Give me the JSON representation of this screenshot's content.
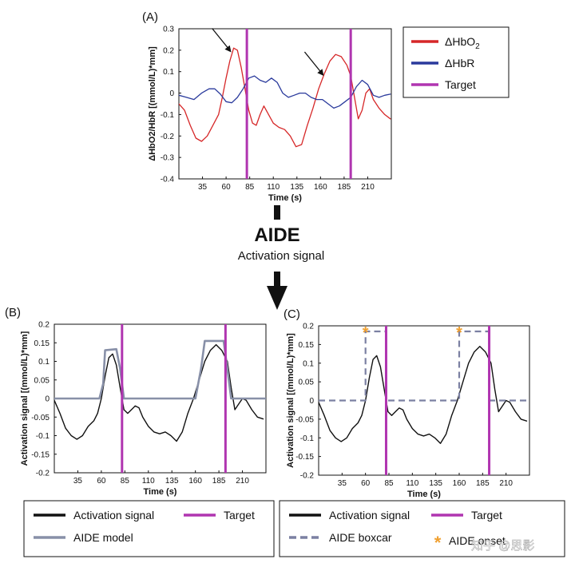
{
  "flow": {
    "title": "AIDE",
    "subtitle": "Activation signal"
  },
  "watermark": "知乎 @思影",
  "colors": {
    "hbo2": "#d62728",
    "hbr": "#2a3a9c",
    "target": "#b035b0",
    "activation": "#111111",
    "aide_model": "#8890a8",
    "aide_boxcar": "#7b80a2",
    "star": "#f0a030"
  },
  "chart_data": [
    {
      "panel": "(A)",
      "type": "line",
      "xlabel": "Time (s)",
      "ylabel": "ΔHbO2/HbR [(mmol/L)*mm]",
      "xlim": [
        10,
        235
      ],
      "ylim": [
        -0.4,
        0.3
      ],
      "xticks": [
        35,
        60,
        85,
        110,
        135,
        160,
        185,
        210
      ],
      "yticks": [
        -0.4,
        -0.3,
        -0.2,
        -0.1,
        0,
        0.1,
        0.2,
        0.3
      ],
      "targets": [
        82,
        192
      ],
      "arrows": [
        {
          "x": 68,
          "y": 0.22
        },
        {
          "x": 166,
          "y": 0.11
        }
      ],
      "legend": {
        "position": "right",
        "entries": [
          {
            "label": "ΔHbO",
            "sub": "2",
            "style": "hbo2"
          },
          {
            "label": "ΔHbR",
            "sub": "",
            "style": "hbr"
          },
          {
            "label": "Target",
            "sub": "",
            "style": "target"
          }
        ]
      },
      "series": [
        {
          "name": "ΔHbO2",
          "style": "hbo2",
          "points": [
            [
              10,
              -0.05
            ],
            [
              16,
              -0.08
            ],
            [
              22,
              -0.15
            ],
            [
              28,
              -0.21
            ],
            [
              34,
              -0.225
            ],
            [
              40,
              -0.2
            ],
            [
              46,
              -0.15
            ],
            [
              52,
              -0.1
            ],
            [
              56,
              -0.02
            ],
            [
              60,
              0.07
            ],
            [
              64,
              0.15
            ],
            [
              68,
              0.21
            ],
            [
              72,
              0.2
            ],
            [
              76,
              0.12
            ],
            [
              80,
              0.02
            ],
            [
              84,
              -0.08
            ],
            [
              88,
              -0.14
            ],
            [
              92,
              -0.15
            ],
            [
              96,
              -0.1
            ],
            [
              100,
              -0.06
            ],
            [
              105,
              -0.1
            ],
            [
              110,
              -0.14
            ],
            [
              116,
              -0.16
            ],
            [
              122,
              -0.17
            ],
            [
              128,
              -0.2
            ],
            [
              134,
              -0.25
            ],
            [
              140,
              -0.24
            ],
            [
              146,
              -0.15
            ],
            [
              152,
              -0.07
            ],
            [
              158,
              0.02
            ],
            [
              164,
              0.09
            ],
            [
              170,
              0.15
            ],
            [
              176,
              0.18
            ],
            [
              182,
              0.17
            ],
            [
              188,
              0.13
            ],
            [
              192,
              0.08
            ],
            [
              196,
              -0.02
            ],
            [
              200,
              -0.12
            ],
            [
              204,
              -0.08
            ],
            [
              208,
              0.0
            ],
            [
              212,
              0.02
            ],
            [
              216,
              -0.03
            ],
            [
              222,
              -0.07
            ],
            [
              228,
              -0.1
            ],
            [
              234,
              -0.12
            ]
          ]
        },
        {
          "name": "ΔHbR",
          "style": "hbr",
          "points": [
            [
              10,
              -0.01
            ],
            [
              18,
              -0.02
            ],
            [
              26,
              -0.03
            ],
            [
              34,
              0.0
            ],
            [
              42,
              0.02
            ],
            [
              48,
              0.02
            ],
            [
              54,
              -0.005
            ],
            [
              60,
              -0.04
            ],
            [
              66,
              -0.045
            ],
            [
              72,
              -0.02
            ],
            [
              78,
              0.02
            ],
            [
              84,
              0.07
            ],
            [
              90,
              0.08
            ],
            [
              96,
              0.06
            ],
            [
              102,
              0.05
            ],
            [
              108,
              0.07
            ],
            [
              114,
              0.05
            ],
            [
              120,
              0.0
            ],
            [
              126,
              -0.02
            ],
            [
              132,
              -0.01
            ],
            [
              138,
              0.0
            ],
            [
              144,
              0.0
            ],
            [
              150,
              -0.02
            ],
            [
              156,
              -0.03
            ],
            [
              162,
              -0.03
            ],
            [
              168,
              -0.05
            ],
            [
              174,
              -0.07
            ],
            [
              180,
              -0.06
            ],
            [
              186,
              -0.04
            ],
            [
              192,
              -0.02
            ],
            [
              198,
              0.03
            ],
            [
              204,
              0.06
            ],
            [
              210,
              0.04
            ],
            [
              216,
              -0.01
            ],
            [
              222,
              -0.02
            ],
            [
              228,
              -0.01
            ],
            [
              234,
              -0.005
            ]
          ]
        }
      ]
    },
    {
      "panel": "(B)",
      "type": "line",
      "xlabel": "Time (s)",
      "ylabel": "Activation signal [(mmol/L)*mm]",
      "xlim": [
        10,
        235
      ],
      "ylim": [
        -0.2,
        0.2
      ],
      "xticks": [
        35,
        60,
        85,
        110,
        135,
        160,
        185,
        210
      ],
      "yticks": [
        -0.2,
        -0.15,
        -0.1,
        -0.05,
        0,
        0.05,
        0.1,
        0.15,
        0.2
      ],
      "targets": [
        82,
        192
      ],
      "legend": {
        "position": "bottom",
        "entries": [
          {
            "label": "Activation signal",
            "style": "activation"
          },
          {
            "label": "Target",
            "style": "target"
          },
          {
            "label": "AIDE model",
            "style": "aide_model"
          }
        ]
      },
      "series": [
        {
          "name": "Activation signal",
          "style": "activation",
          "points": [
            [
              10,
              -0.005
            ],
            [
              16,
              -0.04
            ],
            [
              22,
              -0.08
            ],
            [
              28,
              -0.1
            ],
            [
              34,
              -0.11
            ],
            [
              40,
              -0.1
            ],
            [
              46,
              -0.075
            ],
            [
              52,
              -0.06
            ],
            [
              56,
              -0.04
            ],
            [
              60,
              0.0
            ],
            [
              64,
              0.06
            ],
            [
              68,
              0.11
            ],
            [
              72,
              0.12
            ],
            [
              76,
              0.09
            ],
            [
              80,
              0.03
            ],
            [
              84,
              -0.03
            ],
            [
              88,
              -0.04
            ],
            [
              92,
              -0.03
            ],
            [
              96,
              -0.02
            ],
            [
              100,
              -0.025
            ],
            [
              104,
              -0.05
            ],
            [
              110,
              -0.075
            ],
            [
              116,
              -0.09
            ],
            [
              122,
              -0.095
            ],
            [
              128,
              -0.09
            ],
            [
              134,
              -0.1
            ],
            [
              140,
              -0.115
            ],
            [
              146,
              -0.09
            ],
            [
              152,
              -0.04
            ],
            [
              158,
              0.0
            ],
            [
              164,
              0.05
            ],
            [
              170,
              0.1
            ],
            [
              176,
              0.13
            ],
            [
              182,
              0.145
            ],
            [
              188,
              0.13
            ],
            [
              194,
              0.1
            ],
            [
              198,
              0.03
            ],
            [
              202,
              -0.03
            ],
            [
              206,
              -0.015
            ],
            [
              210,
              0.0
            ],
            [
              214,
              -0.005
            ],
            [
              220,
              -0.03
            ],
            [
              226,
              -0.05
            ],
            [
              232,
              -0.055
            ]
          ]
        },
        {
          "name": "AIDE model",
          "style": "aide_model",
          "points": [
            [
              10,
              0
            ],
            [
              58,
              0
            ],
            [
              62,
              0.04
            ],
            [
              64,
              0.13
            ],
            [
              76,
              0.133
            ],
            [
              80,
              0.08
            ],
            [
              84,
              0.0
            ],
            [
              160,
              0
            ],
            [
              166,
              0.08
            ],
            [
              170,
              0.155
            ],
            [
              190,
              0.155
            ],
            [
              194,
              0.08
            ],
            [
              198,
              0.0
            ],
            [
              235,
              0
            ]
          ]
        }
      ]
    },
    {
      "panel": "(C)",
      "type": "line",
      "xlabel": "Time (s)",
      "ylabel": "Activation signal [(mmol/L)*mm]",
      "xlim": [
        10,
        235
      ],
      "ylim": [
        -0.2,
        0.2
      ],
      "xticks": [
        35,
        60,
        85,
        110,
        135,
        160,
        185,
        210
      ],
      "yticks": [
        -0.2,
        -0.15,
        -0.1,
        -0.05,
        0,
        0.05,
        0.1,
        0.15,
        0.2
      ],
      "targets": [
        82,
        192
      ],
      "stars": [
        {
          "x": 60,
          "y": 0.185
        },
        {
          "x": 160,
          "y": 0.185
        }
      ],
      "legend": {
        "position": "bottom",
        "entries": [
          {
            "label": "Activation signal",
            "style": "activation"
          },
          {
            "label": "Target",
            "style": "target"
          },
          {
            "label": "AIDE boxcar",
            "style": "aide_boxcar"
          },
          {
            "label": "AIDE onset",
            "style": "star"
          }
        ]
      },
      "series": [
        {
          "name": "Activation signal",
          "style": "activation",
          "points": [
            [
              10,
              -0.005
            ],
            [
              16,
              -0.04
            ],
            [
              22,
              -0.08
            ],
            [
              28,
              -0.1
            ],
            [
              34,
              -0.11
            ],
            [
              40,
              -0.1
            ],
            [
              46,
              -0.075
            ],
            [
              52,
              -0.06
            ],
            [
              56,
              -0.04
            ],
            [
              60,
              0.0
            ],
            [
              64,
              0.06
            ],
            [
              68,
              0.11
            ],
            [
              72,
              0.12
            ],
            [
              76,
              0.09
            ],
            [
              80,
              0.03
            ],
            [
              84,
              -0.03
            ],
            [
              88,
              -0.04
            ],
            [
              92,
              -0.03
            ],
            [
              96,
              -0.02
            ],
            [
              100,
              -0.025
            ],
            [
              104,
              -0.05
            ],
            [
              110,
              -0.075
            ],
            [
              116,
              -0.09
            ],
            [
              122,
              -0.095
            ],
            [
              128,
              -0.09
            ],
            [
              134,
              -0.1
            ],
            [
              140,
              -0.115
            ],
            [
              146,
              -0.09
            ],
            [
              152,
              -0.04
            ],
            [
              158,
              0.0
            ],
            [
              164,
              0.05
            ],
            [
              170,
              0.1
            ],
            [
              176,
              0.13
            ],
            [
              182,
              0.145
            ],
            [
              188,
              0.13
            ],
            [
              194,
              0.1
            ],
            [
              198,
              0.03
            ],
            [
              202,
              -0.03
            ],
            [
              206,
              -0.015
            ],
            [
              210,
              0.0
            ],
            [
              214,
              -0.005
            ],
            [
              220,
              -0.03
            ],
            [
              226,
              -0.05
            ],
            [
              232,
              -0.055
            ]
          ]
        },
        {
          "name": "AIDE boxcar",
          "style": "aide_boxcar",
          "points": [
            [
              10,
              0
            ],
            [
              60,
              0
            ],
            [
              60,
              0.185
            ],
            [
              82,
              0.185
            ],
            [
              82,
              0
            ],
            [
              160,
              0
            ],
            [
              160,
              0.185
            ],
            [
              192,
              0.185
            ],
            [
              192,
              0
            ],
            [
              235,
              0
            ]
          ]
        }
      ]
    }
  ]
}
